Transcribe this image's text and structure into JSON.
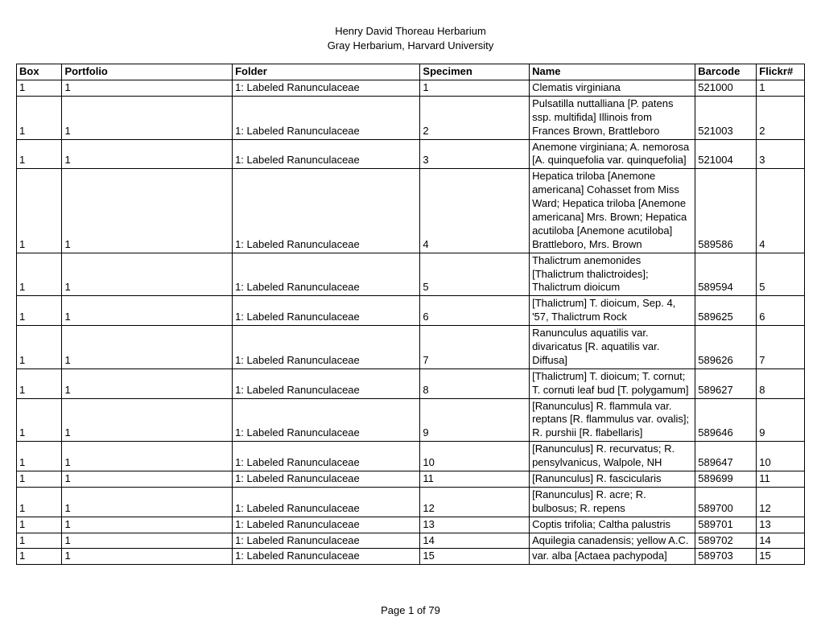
{
  "title": {
    "line1": "Henry David Thoreau Herbarium",
    "line2": "Gray Herbarium, Harvard University"
  },
  "table": {
    "columns": [
      "Box",
      "Portfolio",
      "Folder",
      "Specimen",
      "Name",
      "Barcode",
      "Flickr#"
    ],
    "col_classes": [
      "col-box",
      "col-portfolio",
      "col-folder",
      "col-specimen",
      "col-name",
      "col-barcode",
      "col-flickr"
    ],
    "rows": [
      [
        "1",
        "1",
        "1: Labeled Ranunculaceae",
        "1",
        "Clematis virginiana",
        "521000",
        "1"
      ],
      [
        "1",
        "1",
        "1: Labeled Ranunculaceae",
        "2",
        "Pulsatilla nuttalliana [P. patens ssp. multifida] Illinois from Frances Brown, Brattleboro",
        "521003",
        "2"
      ],
      [
        "1",
        "1",
        "1: Labeled Ranunculaceae",
        "3",
        "Anemone virginiana; A. nemorosa [A. quinquefolia var. quinquefolia]",
        "521004",
        "3"
      ],
      [
        "1",
        "1",
        "1: Labeled Ranunculaceae",
        "4",
        "Hepatica triloba [Anemone americana] Cohasset from Miss Ward; Hepatica triloba [Anemone americana] Mrs. Brown; Hepatica acutiloba [Anemone acutiloba] Brattleboro, Mrs. Brown",
        "589586",
        "4"
      ],
      [
        "1",
        "1",
        "1: Labeled Ranunculaceae",
        "5",
        "Thalictrum anemonides [Thalictrum thalictroides]; Thalictrum dioicum",
        "589594",
        "5"
      ],
      [
        "1",
        "1",
        "1: Labeled Ranunculaceae",
        "6",
        "[Thalictrum] T. dioicum, Sep. 4, '57, Thalictrum Rock",
        "589625",
        "6"
      ],
      [
        "1",
        "1",
        "1: Labeled Ranunculaceae",
        "7",
        "Ranunculus aquatilis var. divaricatus [R. aquatilis var. Diffusa]",
        "589626",
        "7"
      ],
      [
        "1",
        "1",
        "1: Labeled Ranunculaceae",
        "8",
        "[Thalictrum] T. dioicum; T. cornut; T. cornuti leaf bud [T. polygamum]",
        "589627",
        "8"
      ],
      [
        "1",
        "1",
        "1: Labeled Ranunculaceae",
        "9",
        "[Ranunculus] R. flammula var. reptans [R. flammulus var. ovalis]; R. purshii [R. flabellaris]",
        "589646",
        "9"
      ],
      [
        "1",
        "1",
        "1: Labeled Ranunculaceae",
        "10",
        "[Ranunculus] R. recurvatus; R. pensylvanicus, Walpole, NH",
        "589647",
        "10"
      ],
      [
        "1",
        "1",
        "1: Labeled Ranunculaceae",
        "11",
        "[Ranunculus] R. fascicularis",
        "589699",
        "11"
      ],
      [
        "1",
        "1",
        "1: Labeled Ranunculaceae",
        "12",
        "[Ranunculus] R. acre; R. bulbosus; R. repens",
        "589700",
        "12"
      ],
      [
        "1",
        "1",
        "1: Labeled Ranunculaceae",
        "13",
        "Coptis trifolia; Caltha palustris",
        "589701",
        "13"
      ],
      [
        "1",
        "1",
        "1: Labeled Ranunculaceae",
        "14",
        "Aquilegia canadensis; yellow A.C.",
        "589702",
        "14"
      ],
      [
        "1",
        "1",
        "1: Labeled Ranunculaceae",
        "15",
        "var. alba [Actaea pachypoda]",
        "589703",
        "15"
      ]
    ]
  },
  "footer": "Page 1 of 79",
  "style": {
    "background": "#ffffff",
    "text_color": "#000000",
    "border_color": "#000000",
    "font_family": "Arial, Helvetica, sans-serif",
    "font_size_pt": 10
  }
}
